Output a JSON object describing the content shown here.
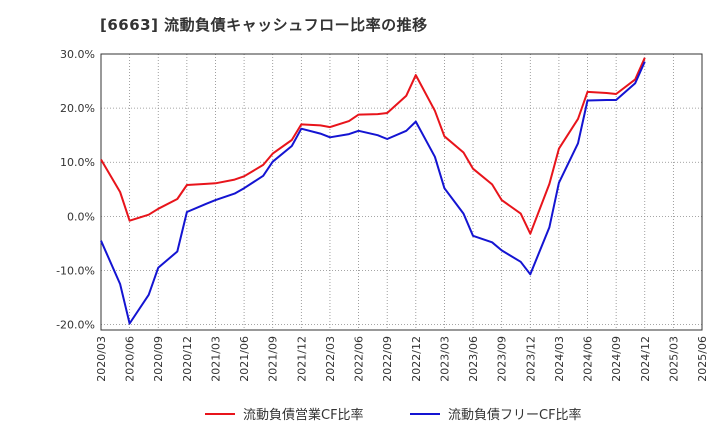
{
  "chart_data": {
    "type": "line",
    "title": "[6663]  流動負債キャッシュフロー比率の推移",
    "xlabel": "",
    "ylabel": "",
    "ylim": [
      -21,
      30
    ],
    "y_ticks": [
      30,
      20,
      10,
      0,
      -10,
      -20
    ],
    "y_tick_labels": [
      "30.0%",
      "20.0%",
      "10.0%",
      "0.0%",
      "-10.0%",
      "-20.0%"
    ],
    "x_tick_labels": [
      "2020/03",
      "2020/06",
      "2020/09",
      "2020/12",
      "2021/03",
      "2021/06",
      "2021/09",
      "2021/12",
      "2022/03",
      "2022/06",
      "2022/09",
      "2022/12",
      "2023/03",
      "2023/06",
      "2023/09",
      "2023/12",
      "2024/03",
      "2024/06",
      "2024/09",
      "2024/12",
      "2025/03",
      "2025/06"
    ],
    "grid": true,
    "legend_position": "bottom",
    "series": [
      {
        "name": "流動負債営業CF比率",
        "color": "#e8141b",
        "x": [
          "2020/03",
          "2020/05",
          "2020/06",
          "2020/08",
          "2020/09",
          "2020/11",
          "2020/12",
          "2021/02",
          "2021/03",
          "2021/05",
          "2021/06",
          "2021/08",
          "2021/09",
          "2021/11",
          "2021/12",
          "2022/02",
          "2022/03",
          "2022/05",
          "2022/06",
          "2022/08",
          "2022/09",
          "2022/11",
          "2022/12",
          "2023/02",
          "2023/03",
          "2023/05",
          "2023/06",
          "2023/08",
          "2023/09",
          "2023/11",
          "2023/12",
          "2024/02",
          "2024/03",
          "2024/05",
          "2024/06",
          "2024/08",
          "2024/09",
          "2024/11",
          "2024/12"
        ],
        "values": [
          10.5,
          4.5,
          -0.8,
          0.3,
          1.4,
          3.2,
          5.8,
          6.0,
          6.1,
          6.8,
          7.4,
          9.5,
          11.6,
          14.1,
          17.0,
          16.8,
          16.5,
          17.6,
          18.8,
          18.9,
          19.1,
          22.3,
          26.1,
          19.5,
          14.8,
          11.8,
          8.8,
          5.9,
          3.0,
          0.5,
          -3.2,
          6.0,
          12.5,
          18.0,
          23.0,
          22.8,
          22.6,
          25.3,
          29.3
        ]
      },
      {
        "name": "流動負債フリーCF比率",
        "color": "#1414d2",
        "x": [
          "2020/03",
          "2020/05",
          "2020/06",
          "2020/08",
          "2020/09",
          "2020/11",
          "2020/12",
          "2021/02",
          "2021/03",
          "2021/05",
          "2021/06",
          "2021/08",
          "2021/09",
          "2021/11",
          "2021/12",
          "2022/02",
          "2022/03",
          "2022/05",
          "2022/06",
          "2022/08",
          "2022/09",
          "2022/11",
          "2022/12",
          "2023/02",
          "2023/03",
          "2023/05",
          "2023/06",
          "2023/08",
          "2023/09",
          "2023/11",
          "2023/12",
          "2024/02",
          "2024/03",
          "2024/05",
          "2024/06",
          "2024/08",
          "2024/09",
          "2024/11",
          "2024/12"
        ],
        "values": [
          -4.5,
          -12.5,
          -19.8,
          -14.5,
          -9.5,
          -6.5,
          0.8,
          2.3,
          3.0,
          4.2,
          5.2,
          7.5,
          10.1,
          13.0,
          16.2,
          15.3,
          14.6,
          15.2,
          15.8,
          15.0,
          14.3,
          15.8,
          17.5,
          11.0,
          5.2,
          0.5,
          -3.6,
          -4.8,
          -6.3,
          -8.4,
          -10.7,
          -2.0,
          6.2,
          13.5,
          21.4,
          21.5,
          21.5,
          24.6,
          28.6
        ]
      }
    ]
  }
}
